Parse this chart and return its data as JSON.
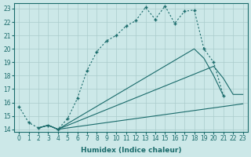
{
  "xlabel": "Humidex (Indice chaleur)",
  "bg_color": "#cce8e8",
  "grid_color": "#aacccc",
  "line_color": "#1a6b6b",
  "xlim": [
    -0.5,
    23.5
  ],
  "ylim": [
    13.8,
    23.4
  ],
  "yticks": [
    14,
    15,
    16,
    17,
    18,
    19,
    20,
    21,
    22,
    23
  ],
  "xticks": [
    0,
    1,
    2,
    3,
    4,
    5,
    6,
    7,
    8,
    9,
    10,
    11,
    12,
    13,
    14,
    15,
    16,
    17,
    18,
    19,
    20,
    21,
    22,
    23
  ],
  "line1_x": [
    0,
    1,
    2,
    3,
    4,
    5,
    6,
    7,
    8,
    9,
    10,
    11,
    12,
    13,
    14,
    15,
    16,
    17,
    18,
    19,
    20,
    21
  ],
  "line1_y": [
    15.7,
    14.5,
    14.1,
    14.3,
    14.0,
    14.8,
    16.3,
    18.4,
    19.8,
    20.6,
    21.0,
    21.7,
    22.1,
    23.1,
    22.2,
    23.2,
    21.9,
    22.8,
    22.9,
    20.0,
    19.0,
    16.5
  ],
  "line2_x": [
    2,
    3,
    4,
    23
  ],
  "line2_y": [
    14.1,
    14.3,
    14.0,
    15.9
  ],
  "line3_x": [
    2,
    3,
    4,
    20,
    21,
    22,
    23
  ],
  "line3_y": [
    14.1,
    14.3,
    14.0,
    18.7,
    17.8,
    16.6,
    16.6
  ],
  "line4_x": [
    2,
    3,
    4,
    18,
    19,
    20,
    21
  ],
  "line4_y": [
    14.1,
    14.3,
    14.0,
    20.0,
    19.3,
    18.0,
    16.5
  ],
  "xlabel_fontsize": 6.5,
  "tick_fontsize": 5.5
}
